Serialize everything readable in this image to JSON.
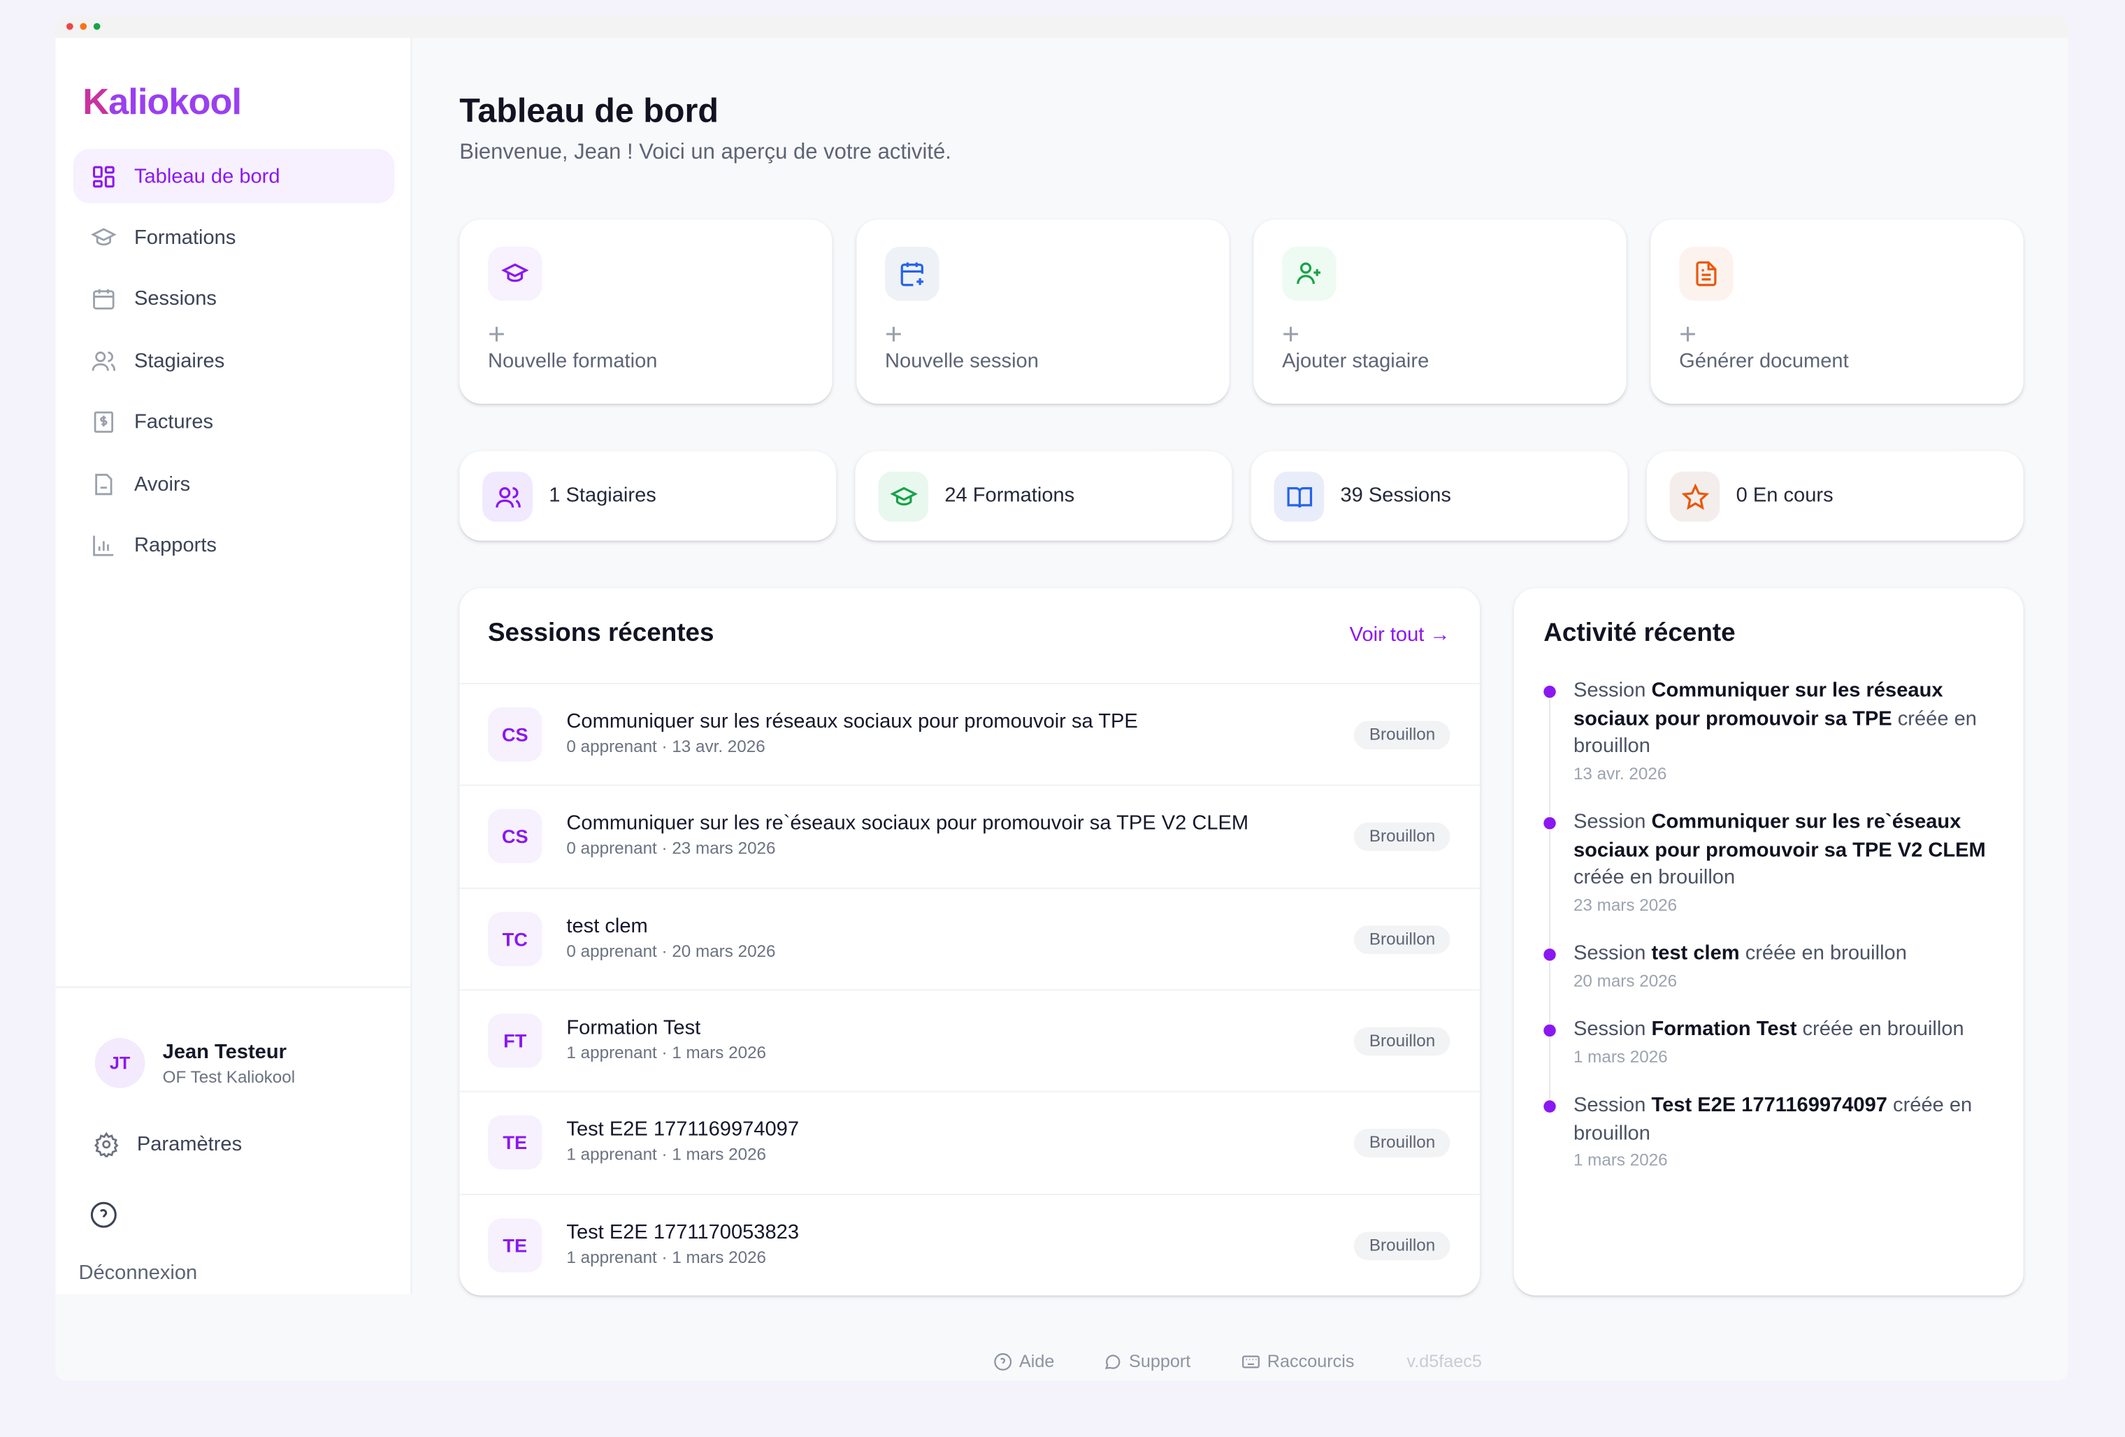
{
  "brand": {
    "name": "Kaliokool",
    "accent": "#8b17f2"
  },
  "sidebar": {
    "items": [
      {
        "label": "Tableau de bord",
        "icon": "dashboard-icon",
        "active": true
      },
      {
        "label": "Formations",
        "icon": "graduation-cap-icon"
      },
      {
        "label": "Sessions",
        "icon": "calendar-icon"
      },
      {
        "label": "Stagiaires",
        "icon": "users-icon"
      },
      {
        "label": "Factures",
        "icon": "invoice-icon"
      },
      {
        "label": "Avoirs",
        "icon": "credit-note-icon"
      },
      {
        "label": "Rapports",
        "icon": "bar-chart-icon"
      }
    ],
    "user": {
      "initials": "JT",
      "name": "Jean Testeur",
      "org": "OF Test Kaliokool"
    },
    "settings_label": "Paramètres",
    "logout_label": "Déconnexion"
  },
  "header": {
    "title": "Tableau de bord",
    "subtitle": "Bienvenue, Jean ! Voici un aperçu de votre activité."
  },
  "actions": [
    {
      "label": "Nouvelle formation",
      "icon": "graduation-cap-icon",
      "color": "#8b17f2"
    },
    {
      "label": "Nouvelle session",
      "icon": "calendar-plus-icon",
      "color": "#2563eb"
    },
    {
      "label": "Ajouter stagiaire",
      "icon": "user-plus-icon",
      "color": "#16a34a"
    },
    {
      "label": "Générer document",
      "icon": "document-icon",
      "color": "#ea580c"
    }
  ],
  "stats": [
    {
      "label": "1 Stagiaires",
      "icon": "users-icon",
      "color": "#8b17f2"
    },
    {
      "label": "24 Formations",
      "icon": "graduation-cap-icon",
      "color": "#16a34a"
    },
    {
      "label": "39 Sessions",
      "icon": "book-open-icon",
      "color": "#2563eb"
    },
    {
      "label": "0 En cours",
      "icon": "star-icon",
      "color": "#ea580c"
    }
  ],
  "sessions": {
    "title": "Sessions récentes",
    "view_all": "Voir tout →",
    "rows": [
      {
        "initials": "CS",
        "title": "Communiquer sur les réseaux sociaux pour promouvoir sa TPE",
        "meta": "0 apprenant · 13 avr. 2026",
        "status": "Brouillon"
      },
      {
        "initials": "CS",
        "title": "Communiquer sur les re`éseaux sociaux pour promouvoir sa TPE V2 CLEM",
        "meta": "0 apprenant · 23 mars 2026",
        "status": "Brouillon"
      },
      {
        "initials": "TC",
        "title": "test clem",
        "meta": "0 apprenant · 20 mars 2026",
        "status": "Brouillon"
      },
      {
        "initials": "FT",
        "title": "Formation Test",
        "meta": "1 apprenant · 1 mars 2026",
        "status": "Brouillon"
      },
      {
        "initials": "TE",
        "title": "Test E2E 1771169974097",
        "meta": "1 apprenant · 1 mars 2026",
        "status": "Brouillon"
      },
      {
        "initials": "TE",
        "title": "Test E2E 1771170053823",
        "meta": "1 apprenant · 1 mars 2026",
        "status": "Brouillon"
      }
    ]
  },
  "activity": {
    "title": "Activité récente",
    "items": [
      {
        "prefix": "Session ",
        "name": "Communiquer sur les réseaux sociaux pour promouvoir sa TPE",
        "suffix": " créée en brouillon",
        "date": "13 avr. 2026"
      },
      {
        "prefix": "Session ",
        "name": "Communiquer sur les re`éseaux sociaux pour promouvoir sa TPE V2 CLEM",
        "suffix": " créée en brouillon",
        "date": "23 mars 2026"
      },
      {
        "prefix": "Session ",
        "name": "test clem",
        "suffix": " créée en brouillon",
        "date": "20 mars 2026"
      },
      {
        "prefix": "Session ",
        "name": "Formation Test",
        "suffix": " créée en brouillon",
        "date": "1 mars 2026"
      },
      {
        "prefix": "Session ",
        "name": "Test E2E 1771169974097",
        "suffix": " créée en brouillon",
        "date": "1 mars 2026"
      }
    ]
  },
  "footer": {
    "help": "Aide",
    "support": "Support",
    "shortcuts": "Raccourcis",
    "version": "v.d5faec5"
  }
}
